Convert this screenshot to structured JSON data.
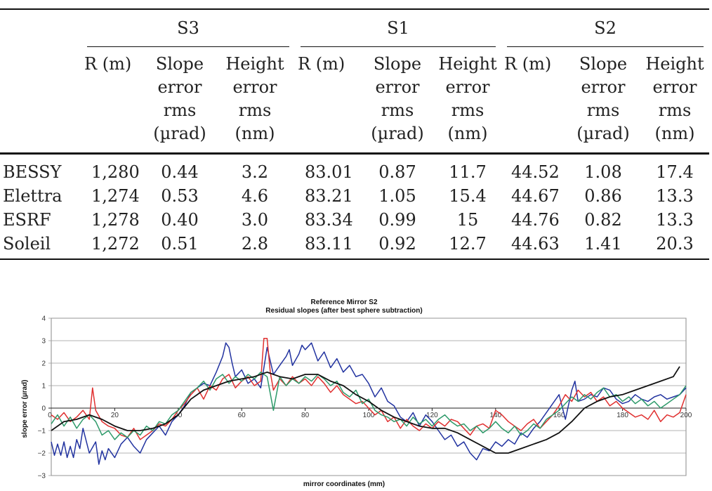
{
  "table": {
    "groups": [
      "S3",
      "S1",
      "S2"
    ],
    "subheaders": [
      [
        "R (m)"
      ],
      [
        "Slope",
        "error",
        "rms",
        "(µrad)"
      ],
      [
        "Height",
        "error",
        "rms",
        "(nm)"
      ]
    ],
    "rows": [
      {
        "label": "BESSY",
        "values": [
          "1,280",
          "0.44",
          "3.2",
          "83.01",
          "0.87",
          "11.7",
          "44.52",
          "1.08",
          "17.4"
        ]
      },
      {
        "label": "Elettra",
        "values": [
          "1,274",
          "0.53",
          "4.6",
          "83.21",
          "1.05",
          "15.4",
          "44.67",
          "0.86",
          "13.3"
        ]
      },
      {
        "label": "ESRF",
        "values": [
          "1,278",
          "0.40",
          "3.0",
          "83.34",
          "0.99",
          "15",
          "44.76",
          "0.82",
          "13.3"
        ]
      },
      {
        "label": "Soleil",
        "values": [
          "1,272",
          "0.51",
          "2.8",
          "83.11",
          "0.92",
          "12.7",
          "44.63",
          "1.41",
          "20.3"
        ]
      }
    ]
  },
  "chart_data": {
    "type": "line",
    "title": "Reference Mirror S2",
    "subtitle": "Residual slopes (after best sphere subtraction)",
    "xlabel": "mirror coordinates (mm)",
    "ylabel": "slope error (µrad)",
    "xlim": [
      0,
      200
    ],
    "ylim": [
      -3,
      4
    ],
    "x_ticks": [
      "20",
      "40",
      "60",
      "80",
      "100",
      "120",
      "140",
      "160",
      "180",
      "200"
    ],
    "y_ticks": [
      "4",
      "3",
      "2",
      "1",
      "0",
      "−1",
      "−2",
      "−3"
    ],
    "grid": "horizontal",
    "series": [
      {
        "color": "#2233a0",
        "x": [
          0,
          1,
          2,
          3,
          4,
          5,
          6,
          7,
          8,
          9,
          10,
          12,
          14,
          15,
          16,
          17,
          18,
          20,
          22,
          24,
          26,
          28,
          30,
          32,
          34,
          36,
          38,
          40,
          42,
          44,
          46,
          48,
          50,
          52,
          54,
          55,
          56,
          57,
          58,
          60,
          62,
          64,
          66,
          68,
          70,
          72,
          74,
          75,
          76,
          78,
          79,
          80,
          82,
          84,
          86,
          88,
          90,
          92,
          94,
          96,
          98,
          100,
          102,
          104,
          106,
          108,
          110,
          112,
          114,
          116,
          118,
          120,
          122,
          124,
          126,
          128,
          130,
          132,
          134,
          136,
          138,
          140,
          142,
          144,
          146,
          148,
          150,
          152,
          154,
          156,
          158,
          160,
          162,
          164,
          165,
          166,
          168,
          170,
          172,
          174,
          176,
          178,
          180,
          182,
          184,
          186,
          188,
          190,
          192,
          194,
          196,
          198,
          200
        ],
        "y": [
          -1.5,
          -2.1,
          -1.6,
          -2.1,
          -1.5,
          -2.2,
          -1.7,
          -2.2,
          -1.4,
          -1.8,
          -0.9,
          -2.0,
          -1.5,
          -2.5,
          -1.9,
          -2.3,
          -1.8,
          -2.2,
          -1.6,
          -1.3,
          -1.7,
          -2.0,
          -1.4,
          -1.1,
          -0.8,
          -1.2,
          -0.6,
          -0.3,
          0.1,
          0.7,
          0.9,
          1.1,
          1.0,
          1.6,
          2.3,
          2.9,
          2.7,
          2.0,
          1.4,
          1.7,
          1.1,
          1.3,
          0.9,
          2.7,
          1.5,
          1.9,
          2.3,
          2.6,
          1.9,
          2.4,
          2.8,
          2.6,
          2.9,
          2.1,
          2.5,
          1.8,
          2.2,
          1.6,
          1.9,
          1.4,
          1.5,
          1.1,
          0.5,
          0.9,
          0.3,
          0.1,
          -0.4,
          -0.6,
          -0.2,
          -0.8,
          -0.3,
          -0.6,
          -1.0,
          -1.4,
          -1.2,
          -1.7,
          -1.5,
          -2.0,
          -2.3,
          -1.8,
          -1.9,
          -1.5,
          -1.7,
          -1.4,
          -1.6,
          -1.1,
          -1.3,
          -0.9,
          -0.6,
          -0.2,
          0.2,
          0.6,
          -0.5,
          0.8,
          1.2,
          0.3,
          0.4,
          0.6,
          0.5,
          0.9,
          0.8,
          0.4,
          0.2,
          0.3,
          0.6,
          0.4,
          0.3,
          0.5,
          0.6,
          0.4,
          0.5,
          0.6,
          0.9
        ]
      },
      {
        "color": "#e03030",
        "x": [
          0,
          2,
          4,
          6,
          8,
          10,
          12,
          13,
          14,
          16,
          18,
          20,
          22,
          24,
          26,
          28,
          30,
          32,
          34,
          36,
          38,
          40,
          42,
          44,
          46,
          48,
          50,
          52,
          54,
          56,
          58,
          60,
          62,
          64,
          66,
          67,
          68,
          69,
          70,
          72,
          74,
          76,
          78,
          80,
          82,
          84,
          86,
          88,
          90,
          92,
          94,
          96,
          98,
          100,
          102,
          104,
          106,
          108,
          110,
          112,
          114,
          116,
          118,
          120,
          122,
          124,
          126,
          128,
          130,
          132,
          134,
          136,
          138,
          140,
          142,
          144,
          146,
          148,
          150,
          152,
          154,
          156,
          158,
          160,
          162,
          164,
          166,
          168,
          170,
          172,
          174,
          176,
          178,
          180,
          182,
          184,
          186,
          188,
          190,
          192,
          194,
          196,
          198,
          200
        ],
        "y": [
          -0.3,
          -0.5,
          -0.2,
          -0.6,
          -0.4,
          -0.1,
          -0.5,
          0.9,
          -0.1,
          -0.6,
          -0.8,
          -0.9,
          -1.2,
          -1.3,
          -0.9,
          -1.4,
          -1.2,
          -1.0,
          -0.7,
          -0.8,
          -0.5,
          -0.1,
          0.2,
          0.6,
          0.9,
          0.4,
          1.0,
          0.8,
          1.3,
          1.5,
          0.9,
          1.2,
          1.4,
          1.0,
          1.2,
          3.1,
          3.1,
          1.6,
          0.8,
          1.3,
          1.0,
          1.4,
          1.1,
          1.3,
          1.0,
          1.4,
          1.1,
          0.7,
          1.0,
          0.6,
          0.4,
          0.2,
          0.3,
          0.0,
          -0.3,
          -0.1,
          -0.6,
          -0.4,
          -0.9,
          -0.5,
          -0.8,
          -1.0,
          -0.7,
          -0.9,
          -0.6,
          -0.8,
          -0.5,
          -0.6,
          -0.9,
          -1.2,
          -0.8,
          -0.7,
          -0.9,
          -0.1,
          -0.3,
          -0.6,
          -0.8,
          -1.0,
          -0.7,
          -0.5,
          -0.9,
          -0.6,
          -0.3,
          0.1,
          0.6,
          0.3,
          0.8,
          0.5,
          0.7,
          0.3,
          0.5,
          0.1,
          0.3,
          0.0,
          -0.2,
          -0.4,
          -0.3,
          -0.5,
          -0.1,
          -0.6,
          -0.3,
          -0.4,
          -0.2,
          0.6
        ]
      },
      {
        "color": "#2e9a6a",
        "x": [
          0,
          2,
          4,
          6,
          8,
          10,
          12,
          14,
          16,
          18,
          20,
          22,
          24,
          26,
          28,
          30,
          32,
          34,
          36,
          38,
          40,
          42,
          44,
          46,
          48,
          50,
          52,
          54,
          56,
          58,
          60,
          62,
          64,
          66,
          68,
          70,
          72,
          74,
          76,
          78,
          80,
          82,
          84,
          86,
          88,
          90,
          92,
          94,
          96,
          98,
          100,
          102,
          104,
          106,
          108,
          110,
          112,
          114,
          116,
          118,
          120,
          122,
          124,
          126,
          128,
          130,
          132,
          134,
          136,
          138,
          140,
          142,
          144,
          146,
          148,
          150,
          152,
          154,
          156,
          158,
          160,
          162,
          164,
          166,
          168,
          170,
          172,
          174,
          176,
          178,
          180,
          182,
          184,
          186,
          188,
          190,
          192,
          194,
          196,
          198,
          200
        ],
        "y": [
          -0.7,
          -0.3,
          -0.8,
          -0.4,
          -0.9,
          -0.5,
          -0.3,
          -0.6,
          -1.2,
          -1.0,
          -1.4,
          -1.1,
          -1.3,
          -1.0,
          -1.2,
          -0.8,
          -1.0,
          -0.6,
          -0.7,
          -0.3,
          -0.1,
          0.3,
          0.7,
          0.9,
          1.2,
          0.8,
          1.3,
          1.5,
          1.1,
          1.4,
          1.2,
          1.5,
          1.3,
          1.6,
          1.4,
          -0.1,
          1.4,
          1.0,
          1.3,
          1.1,
          1.4,
          1.2,
          1.5,
          1.3,
          1.0,
          1.2,
          0.7,
          0.5,
          0.8,
          0.2,
          0.4,
          -0.1,
          -0.3,
          -0.4,
          -0.6,
          -0.5,
          -0.8,
          -0.4,
          -0.7,
          -0.5,
          -0.8,
          -0.5,
          -0.3,
          -0.6,
          -0.8,
          -0.7,
          -1.0,
          -0.8,
          -1.1,
          -0.9,
          -0.6,
          -0.9,
          -1.1,
          -0.8,
          -1.2,
          -1.0,
          -0.7,
          -0.9,
          -0.5,
          -0.3,
          -0.1,
          0.2,
          0.5,
          0.3,
          0.6,
          0.4,
          0.7,
          0.9,
          0.5,
          0.6,
          0.3,
          0.5,
          0.2,
          0.4,
          0.1,
          0.3,
          0.0,
          0.2,
          0.4,
          0.6,
          1.0
        ]
      },
      {
        "color": "#111111",
        "x": [
          0,
          4,
          8,
          12,
          16,
          20,
          24,
          28,
          32,
          36,
          40,
          44,
          48,
          52,
          56,
          60,
          64,
          68,
          72,
          76,
          80,
          84,
          88,
          92,
          96,
          100,
          104,
          108,
          112,
          116,
          120,
          124,
          128,
          132,
          136,
          140,
          144,
          148,
          152,
          156,
          160,
          164,
          168,
          172,
          176,
          180,
          184,
          188,
          192,
          196,
          198
        ],
        "y": [
          -1.0,
          -0.6,
          -0.5,
          -0.3,
          -0.5,
          -0.8,
          -1.0,
          -1.0,
          -0.9,
          -0.7,
          -0.3,
          0.4,
          0.8,
          1.0,
          1.2,
          1.3,
          1.4,
          1.6,
          1.4,
          1.3,
          1.5,
          1.5,
          1.2,
          1.0,
          0.6,
          0.3,
          -0.1,
          -0.4,
          -0.6,
          -0.8,
          -0.9,
          -0.9,
          -1.1,
          -1.4,
          -1.7,
          -2.0,
          -2.0,
          -1.8,
          -1.6,
          -1.4,
          -1.1,
          -0.6,
          0.0,
          0.3,
          0.5,
          0.6,
          0.8,
          1.0,
          1.2,
          1.4,
          1.85
        ]
      }
    ]
  }
}
